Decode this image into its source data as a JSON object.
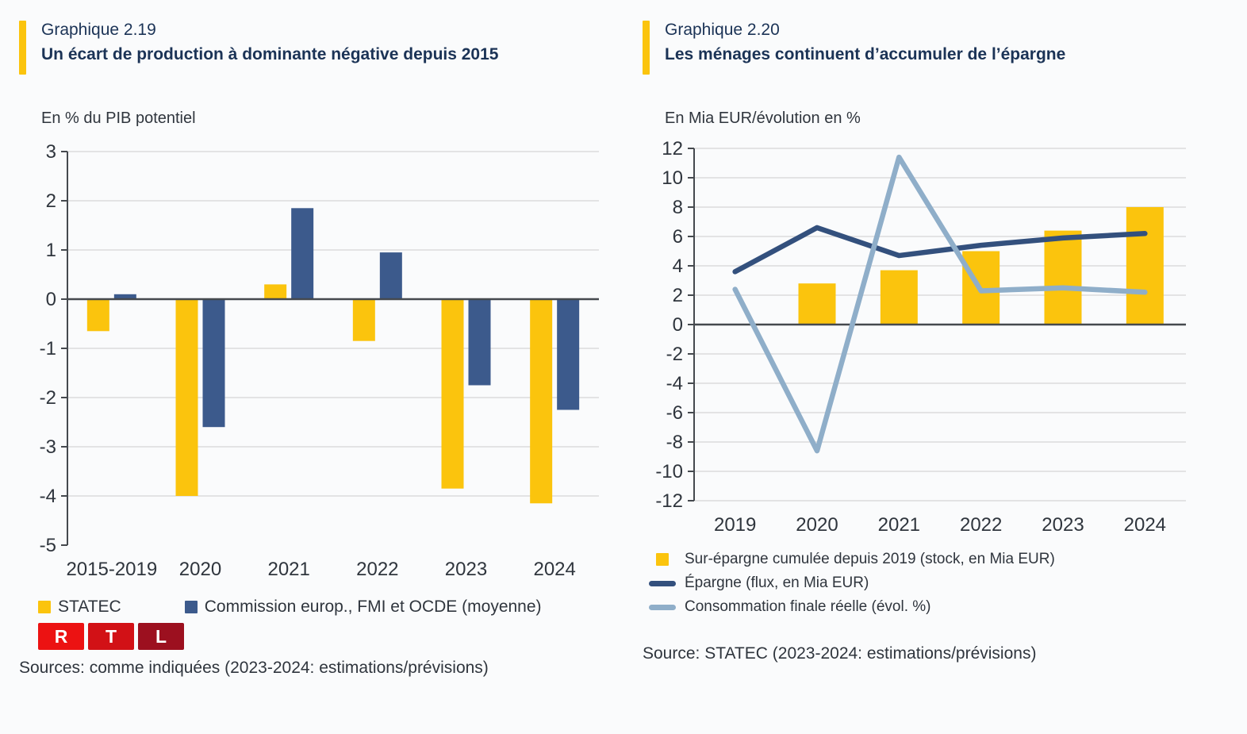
{
  "colors": {
    "yellow": "#fbc40d",
    "navy": "#3c5a8c",
    "navy_line": "#33507d",
    "light_blue": "#8faec9",
    "title_navy": "#1b3356",
    "text": "#2f353d",
    "grid": "#dbdbdb",
    "axis": "#45494e",
    "rtl_r": "#ec1212",
    "rtl_t": "#d21116",
    "rtl_l": "#9c101f"
  },
  "logo": {
    "letters": [
      "R",
      "T",
      "L"
    ]
  },
  "chart_data": [
    {
      "type": "bar",
      "kicker": "Graphique 2.19",
      "title": "Un écart de production à dominante négative depuis 2015",
      "unit": "En % du PIB potentiel",
      "categories": [
        "2015-2019",
        "2020",
        "2021",
        "2022",
        "2023",
        "2024"
      ],
      "series": [
        {
          "name": "STATEC",
          "color_key": "yellow",
          "values": [
            -0.65,
            -4.0,
            0.3,
            -0.85,
            -3.85,
            -4.15
          ]
        },
        {
          "name": "Commission europ., FMI et OCDE (moyenne)",
          "color_key": "navy",
          "values": [
            0.1,
            -2.6,
            1.85,
            0.95,
            -1.75,
            -2.25
          ]
        }
      ],
      "ylim": [
        -5,
        3
      ],
      "ytick_step": 1,
      "grid": true,
      "legend_position": "bottom",
      "source": "Sources: comme indiquées (2023-2024: estimations/prévisions)"
    },
    {
      "type": "combo",
      "kicker": "Graphique 2.20",
      "title": "Les ménages continuent d’accumuler de l’épargne",
      "unit": "En Mia EUR/évolution en %",
      "categories": [
        "2019",
        "2020",
        "2021",
        "2022",
        "2023",
        "2024"
      ],
      "bar_series": {
        "name": "Sur-épargne cumulée depuis 2019 (stock, en Mia EUR)",
        "color_key": "yellow",
        "values": [
          0,
          2.8,
          3.7,
          5.0,
          6.4,
          8.0
        ]
      },
      "line_series": [
        {
          "name": "Épargne (flux, en Mia EUR)",
          "color_key": "navy_line",
          "values": [
            3.6,
            6.6,
            4.7,
            5.4,
            5.9,
            6.2
          ]
        },
        {
          "name": "Consommation finale réelle (évol. %)",
          "color_key": "light_blue",
          "values": [
            2.4,
            -8.6,
            11.4,
            2.3,
            2.5,
            2.2
          ]
        }
      ],
      "ylim": [
        -12,
        12
      ],
      "ytick_step": 2,
      "grid": true,
      "legend_position": "bottom",
      "source": "Source: STATEC (2023-2024: estimations/prévisions)"
    }
  ]
}
